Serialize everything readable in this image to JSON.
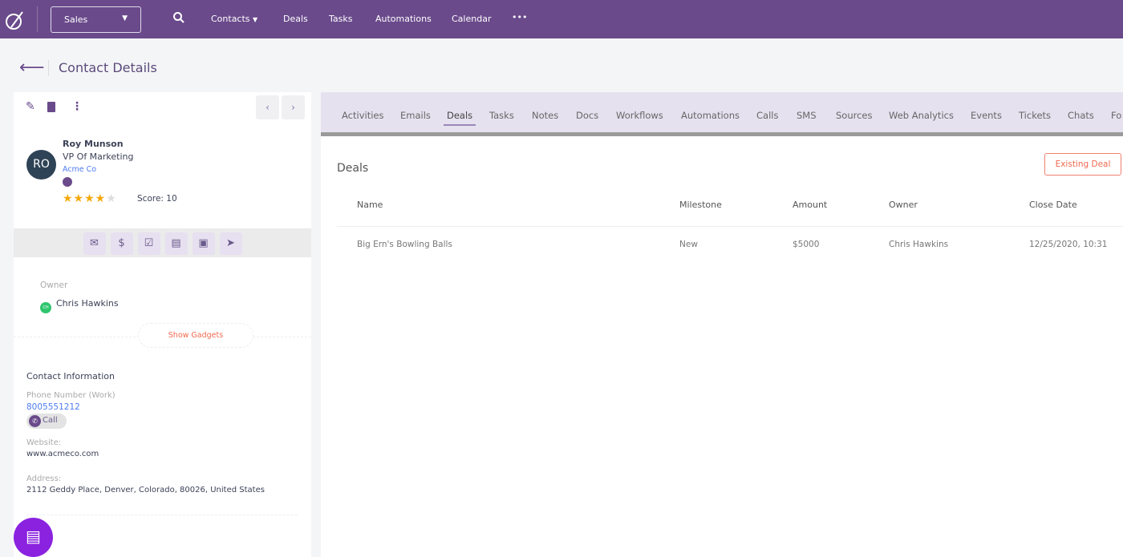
{
  "topbar": {
    "pipeline": "Sales",
    "nav": [
      "Contacts",
      "Deals",
      "Tasks",
      "Automations",
      "Calendar"
    ],
    "more": "•••"
  },
  "page": {
    "title": "Contact Details"
  },
  "contact": {
    "initials": "RO",
    "name": "Roy Munson",
    "title": "VP Of Marketing",
    "company": "Acme Co",
    "rating": 4,
    "rating_max": 5,
    "score": "Score: 10",
    "owner_label": "Owner",
    "owner_initials": "CH",
    "owner": "Chris Hawkins",
    "show_gadgets": "Show Gadgets",
    "info_heading": "Contact Information",
    "phone_label": "Phone Number (Work)",
    "phone": "8005551212",
    "call": "Call",
    "website_label": "Website:",
    "website": "www.acmeco.com",
    "address_label": "Address:",
    "address": "2112 Geddy Place, Denver, Colorado, 80026, United States"
  },
  "tabs": [
    "Activities",
    "Emails",
    "Deals",
    "Tasks",
    "Notes",
    "Docs",
    "Workflows",
    "Automations",
    "Calls",
    "SMS",
    "Sources",
    "Web Analytics",
    "Events",
    "Tickets",
    "Chats",
    "Fo"
  ],
  "active_tab": "Deals",
  "deals": {
    "heading": "Deals",
    "existing_button": "Existing Deal",
    "columns": [
      "Name",
      "Milestone",
      "Amount",
      "Owner",
      "Close Date"
    ],
    "rows": [
      [
        "Big Ern's Bowling Balls",
        "New",
        "$5000",
        "Chris Hawkins",
        "12/25/2020, 10:31"
      ]
    ]
  },
  "colors": {
    "brand": "#6a4a8b",
    "accent": "#f06a50"
  }
}
